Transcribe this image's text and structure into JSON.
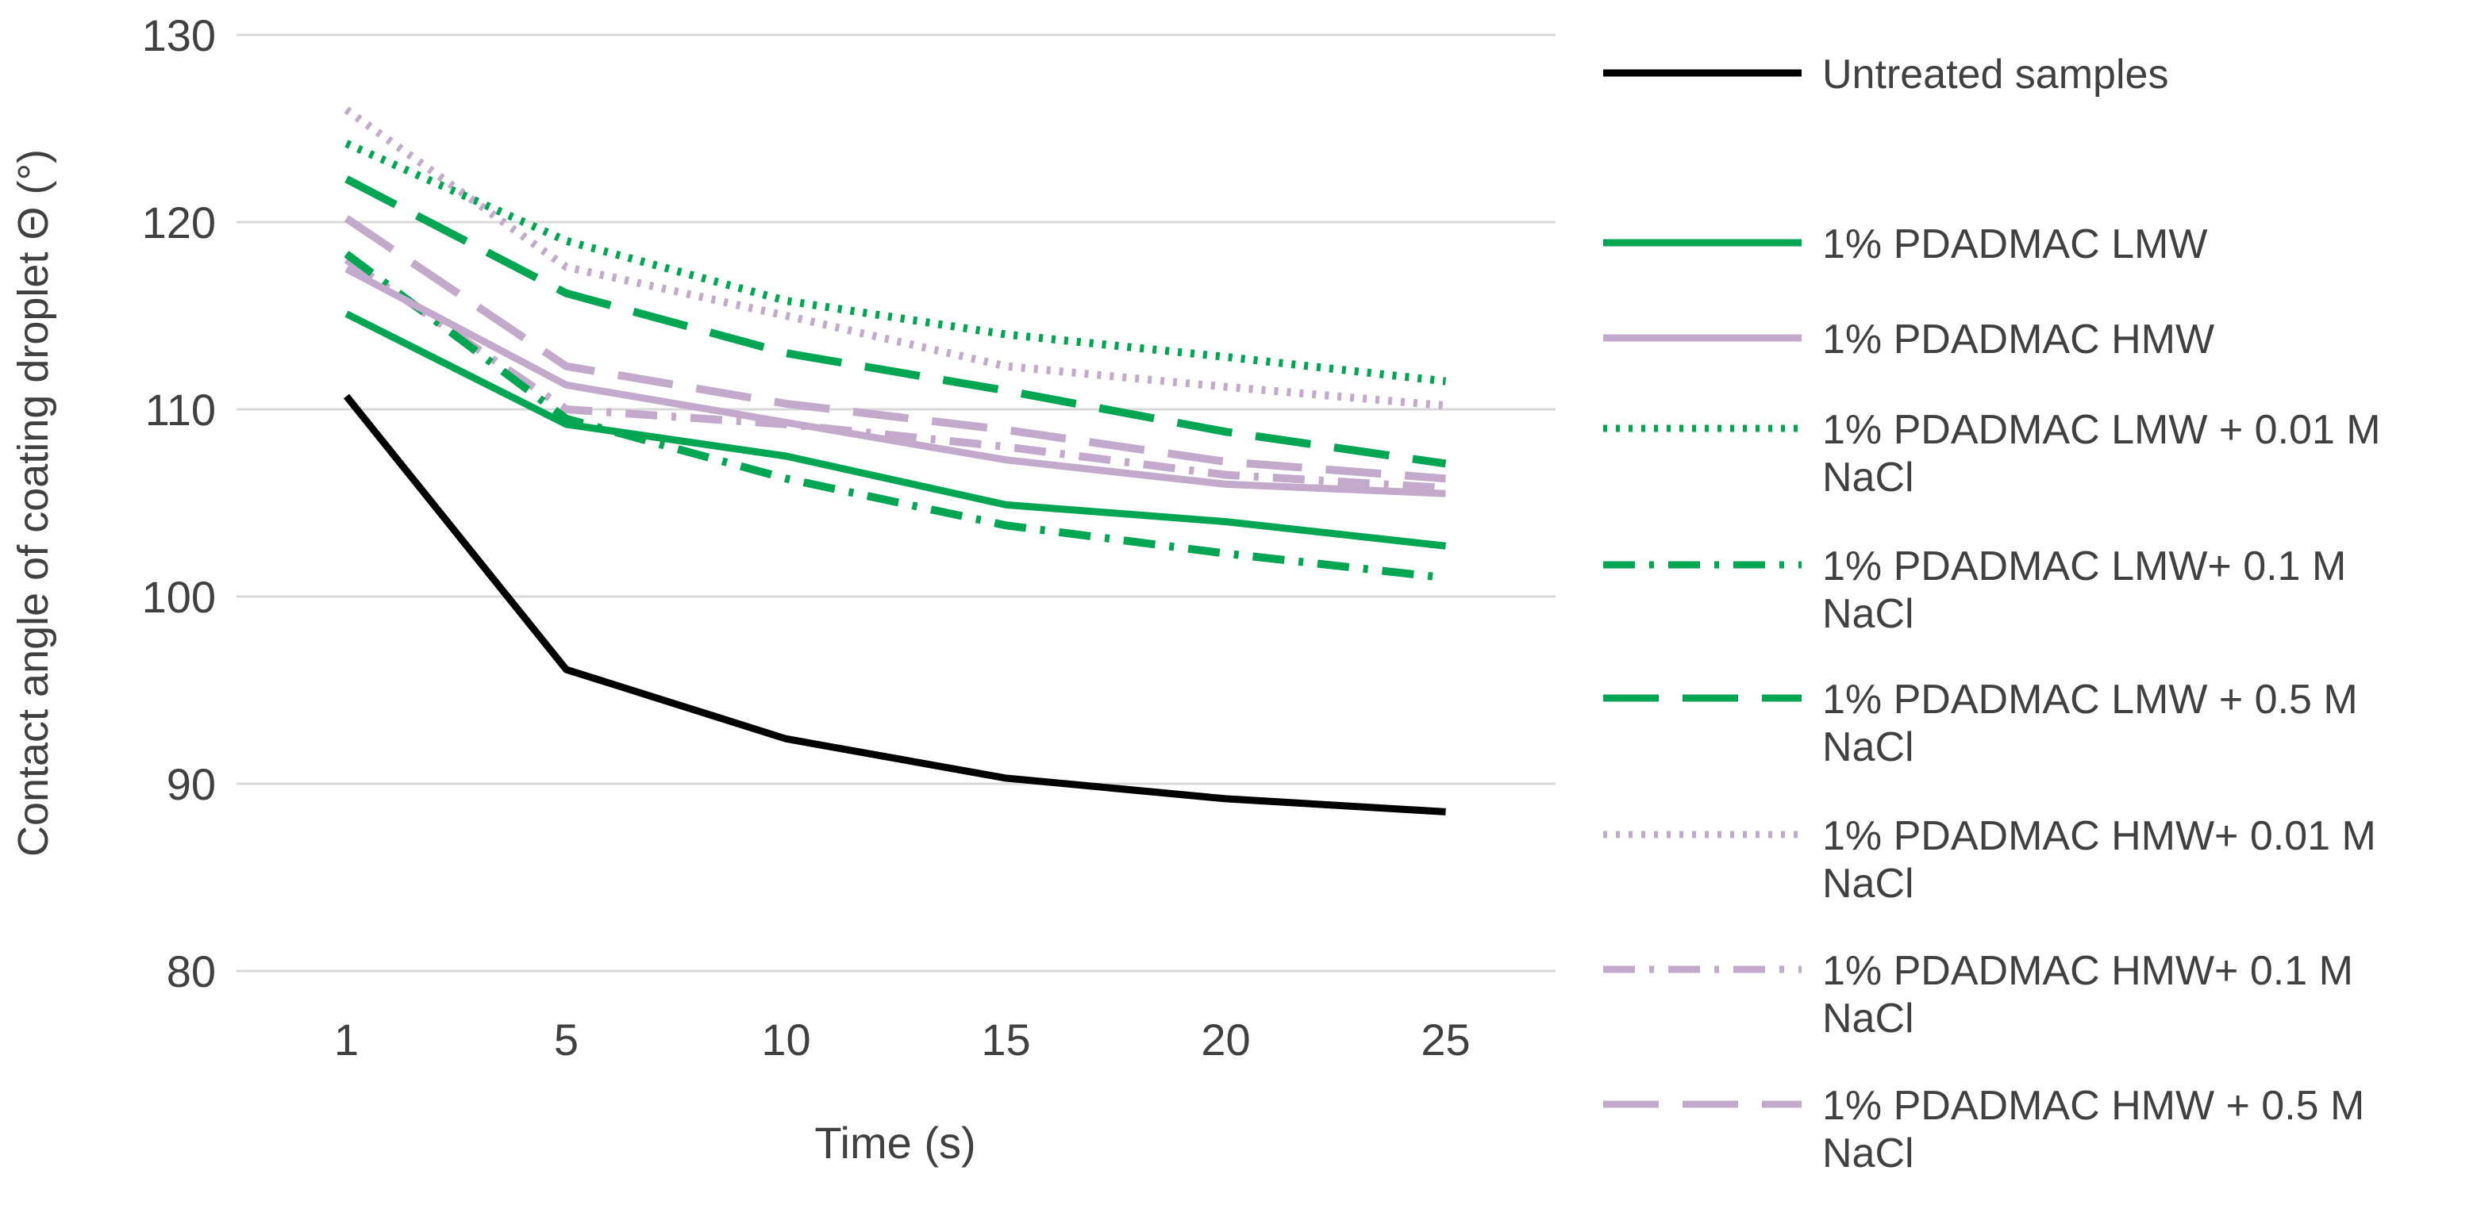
{
  "chart_data": {
    "type": "line",
    "xlabel": "Time (s)",
    "ylabel": "Contact angle of coating droplet Θ (°)",
    "categories": [
      "1",
      "5",
      "10",
      "15",
      "20",
      "25"
    ],
    "ylim": [
      80,
      130
    ],
    "yticks": [
      "80",
      "90",
      "100",
      "110",
      "120",
      "130"
    ],
    "grid": true,
    "legend_position": "right",
    "series": [
      {
        "name": "Untreated samples",
        "color": "#000000",
        "dash": "solid",
        "values": [
          110.7,
          96.1,
          92.4,
          90.3,
          89.2,
          88.5
        ]
      },
      {
        "name": "1% PDADMAC LMW",
        "color": "#00a651",
        "dash": "solid",
        "values": [
          115.1,
          109.2,
          107.5,
          104.9,
          104.0,
          102.7
        ]
      },
      {
        "name": "1% PDADMAC HMW",
        "color": "#c3a9cc",
        "dash": "solid",
        "values": [
          117.5,
          111.3,
          109.3,
          107.3,
          106.0,
          105.5
        ]
      },
      {
        "name": "1% PDADMAC LMW + 0.01 M NaCl",
        "color": "#00a651",
        "dash": "dot",
        "values": [
          124.2,
          119.0,
          115.8,
          114.0,
          112.8,
          111.5
        ]
      },
      {
        "name": "1% PDADMAC LMW+ 0.1 M NaCl",
        "color": "#00a651",
        "dash": "dashdot",
        "values": [
          118.3,
          109.5,
          106.3,
          103.8,
          102.3,
          101.0
        ]
      },
      {
        "name": "1% PDADMAC LMW + 0.5 M NaCl",
        "color": "#00a651",
        "dash": "longdash",
        "values": [
          122.3,
          116.2,
          113.0,
          111.0,
          108.8,
          107.1
        ]
      },
      {
        "name": "1% PDADMAC HMW+ 0.01 M NaCl",
        "color": "#c3a9cc",
        "dash": "dot",
        "values": [
          126.0,
          117.6,
          115.0,
          112.3,
          111.2,
          110.2
        ]
      },
      {
        "name": "1% PDADMAC HMW+ 0.1 M NaCl",
        "color": "#c3a9cc",
        "dash": "dashdot",
        "values": [
          118.0,
          110.0,
          109.2,
          108.0,
          106.5,
          105.8
        ]
      },
      {
        "name": "1% PDADMAC HMW + 0.5 M NaCl",
        "color": "#c3a9cc",
        "dash": "longdash",
        "values": [
          120.2,
          112.3,
          110.3,
          108.9,
          107.2,
          106.3
        ]
      }
    ],
    "legend_lines": [
      [
        "Untreated samples"
      ],
      [
        "1% PDADMAC LMW"
      ],
      [
        "1% PDADMAC HMW"
      ],
      [
        "1% PDADMAC LMW + 0.01 M",
        "NaCl"
      ],
      [
        "1% PDADMAC LMW+ 0.1 M",
        "NaCl"
      ],
      [
        "1% PDADMAC LMW + 0.5 M",
        "NaCl"
      ],
      [
        "1% PDADMAC HMW+ 0.01 M",
        "NaCl"
      ],
      [
        "1% PDADMAC HMW+ 0.1 M",
        "NaCl"
      ],
      [
        "1% PDADMAC HMW + 0.5 M",
        "NaCl"
      ]
    ]
  }
}
